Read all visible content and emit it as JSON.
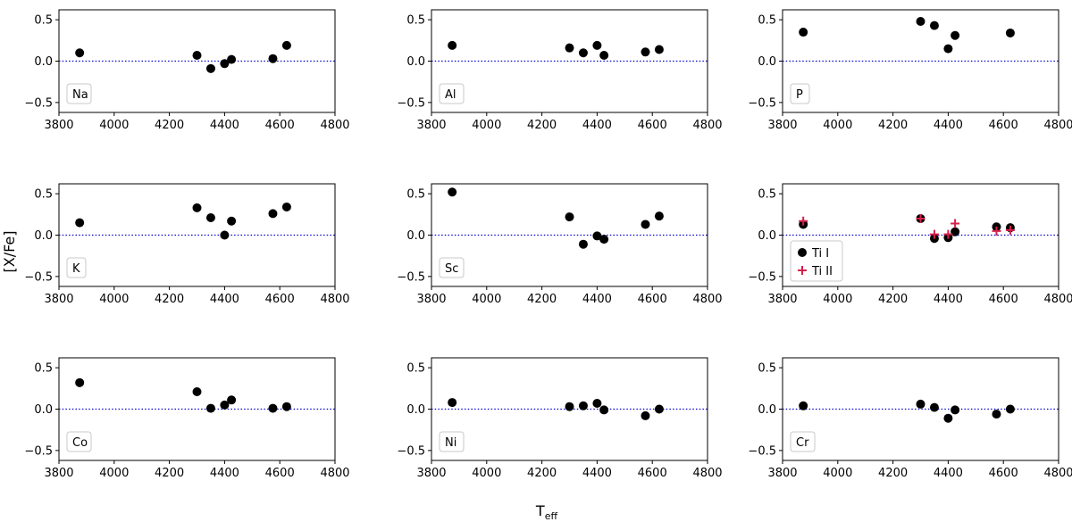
{
  "figure": {
    "ylabel": "[X/Fe]",
    "xlabel_main": "T",
    "xlabel_sub": "eff",
    "xticks": [
      3800,
      4000,
      4200,
      4400,
      4600,
      4800
    ],
    "yticks": [
      -0.5,
      0.0,
      0.5
    ],
    "ytick_labels": [
      "−0.5",
      "0.0",
      "0.5"
    ],
    "xlim": [
      3800,
      4800
    ],
    "ylim": [
      -0.62,
      0.62
    ],
    "reference_line": {
      "y": 0.0,
      "color": "#0000cc",
      "style": "dotted"
    },
    "colors": {
      "ti1": "#000000",
      "ti2": "#d6204a"
    }
  },
  "chart_data": [
    {
      "type": "scatter",
      "label": "Na",
      "series": [
        {
          "name": "Na",
          "marker": "circle",
          "x": [
            3875,
            4300,
            4350,
            4400,
            4425,
            4575,
            4625
          ],
          "y": [
            0.1,
            0.07,
            -0.09,
            -0.03,
            0.02,
            0.03,
            0.19
          ]
        }
      ]
    },
    {
      "type": "scatter",
      "label": "Al",
      "series": [
        {
          "name": "Al",
          "marker": "circle",
          "x": [
            3875,
            4300,
            4350,
            4400,
            4425,
            4575,
            4625
          ],
          "y": [
            0.19,
            0.16,
            0.1,
            0.19,
            0.07,
            0.11,
            0.14
          ]
        }
      ]
    },
    {
      "type": "scatter",
      "label": "P",
      "series": [
        {
          "name": "P",
          "marker": "circle",
          "x": [
            3875,
            4300,
            4350,
            4400,
            4425,
            4625
          ],
          "y": [
            0.35,
            0.48,
            0.43,
            0.15,
            0.31,
            0.34
          ]
        }
      ]
    },
    {
      "type": "scatter",
      "label": "K",
      "series": [
        {
          "name": "K",
          "marker": "circle",
          "x": [
            3875,
            4300,
            4350,
            4400,
            4425,
            4575,
            4625
          ],
          "y": [
            0.15,
            0.33,
            0.21,
            0.0,
            0.17,
            0.26,
            0.34
          ]
        }
      ]
    },
    {
      "type": "scatter",
      "label": "Sc",
      "series": [
        {
          "name": "Sc",
          "marker": "circle",
          "x": [
            3875,
            4300,
            4350,
            4400,
            4425,
            4575,
            4625
          ],
          "y": [
            0.52,
            0.22,
            -0.11,
            -0.01,
            -0.05,
            0.13,
            0.23
          ]
        }
      ]
    },
    {
      "type": "scatter",
      "label": "",
      "legend": [
        "Ti I",
        "Ti II"
      ],
      "series": [
        {
          "name": "Ti I",
          "marker": "circle",
          "x": [
            3875,
            4300,
            4350,
            4400,
            4425,
            4575,
            4625
          ],
          "y": [
            0.13,
            0.2,
            -0.04,
            -0.03,
            0.04,
            0.1,
            0.09
          ]
        },
        {
          "name": "Ti II",
          "marker": "plus",
          "x": [
            3875,
            4300,
            4350,
            4400,
            4425,
            4575,
            4625
          ],
          "y": [
            0.17,
            0.2,
            0.01,
            0.01,
            0.14,
            0.05,
            0.06
          ]
        }
      ]
    },
    {
      "type": "scatter",
      "label": "Co",
      "series": [
        {
          "name": "Co",
          "marker": "circle",
          "x": [
            3875,
            4300,
            4350,
            4400,
            4425,
            4575,
            4625
          ],
          "y": [
            0.32,
            0.21,
            0.01,
            0.05,
            0.11,
            0.01,
            0.03
          ]
        }
      ]
    },
    {
      "type": "scatter",
      "label": "Ni",
      "series": [
        {
          "name": "Ni",
          "marker": "circle",
          "x": [
            3875,
            4300,
            4350,
            4400,
            4425,
            4575,
            4625
          ],
          "y": [
            0.08,
            0.03,
            0.04,
            0.07,
            -0.01,
            -0.08,
            0.0
          ]
        }
      ]
    },
    {
      "type": "scatter",
      "label": "Cr",
      "series": [
        {
          "name": "Cr",
          "marker": "circle",
          "x": [
            3875,
            4300,
            4350,
            4400,
            4425,
            4575,
            4625
          ],
          "y": [
            0.04,
            0.06,
            0.02,
            -0.11,
            -0.01,
            -0.06,
            0.0
          ]
        }
      ]
    }
  ]
}
